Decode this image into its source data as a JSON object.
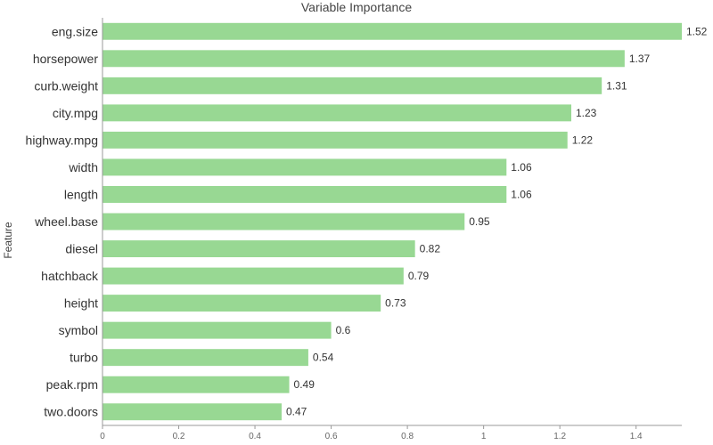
{
  "chart_data": {
    "type": "bar",
    "orientation": "horizontal",
    "title": "Variable Importance",
    "ylabel": "Feature",
    "xlabel": "",
    "categories": [
      "eng.size",
      "horsepower",
      "curb.weight",
      "city.mpg",
      "highway.mpg",
      "width",
      "length",
      "wheel.base",
      "diesel",
      "hatchback",
      "height",
      "symbol",
      "turbo",
      "peak.rpm",
      "two.doors"
    ],
    "values": [
      1.52,
      1.37,
      1.31,
      1.23,
      1.22,
      1.06,
      1.06,
      0.95,
      0.82,
      0.79,
      0.73,
      0.6,
      0.54,
      0.49,
      0.47
    ],
    "value_labels": [
      "1.52",
      "1.37",
      "1.31",
      "1.23",
      "1.22",
      "1.06",
      "1.06",
      "0.95",
      "0.82",
      "0.79",
      "0.73",
      "0.6",
      "0.54",
      "0.49",
      "0.47"
    ],
    "xlim": [
      0,
      1.52
    ],
    "xticks": [
      0,
      0.2,
      0.4,
      0.6,
      0.8,
      1,
      1.2,
      1.4
    ],
    "bar_color": "#98d893",
    "grid": false,
    "legend": "none"
  }
}
